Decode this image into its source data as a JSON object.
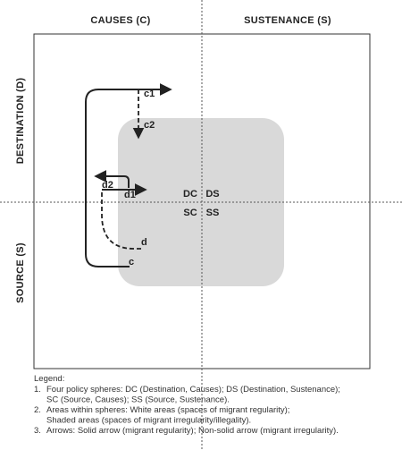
{
  "axes": {
    "top": [
      "CAUSES (C)",
      "SUSTENANCE (S)"
    ],
    "left": [
      "DESTINATION (D)",
      "SOURCE (S)"
    ]
  },
  "quadrants": [
    "DC",
    "DS",
    "SC",
    "SS"
  ],
  "arrows": [
    "c",
    "c1",
    "c2",
    "d",
    "d1",
    "d2"
  ],
  "legend": {
    "title": "Legend:",
    "items": [
      {
        "number": "1.",
        "lines": [
          "Four policy spheres: DC (Destination, Causes); DS (Destination, Sustenance);",
          "SC (Source, Causes); SS (Source, Sustenance)."
        ]
      },
      {
        "number": "2.",
        "lines": [
          "Areas within spheres: White areas (spaces of migrant regularity);",
          "Shaded areas (spaces of migrant irregularity/illegality)."
        ]
      },
      {
        "number": "3.",
        "lines": [
          "Arrows:  Solid arrow (migrant regularity); Non-solid arrow (migrant irregularity)."
        ]
      }
    ]
  }
}
